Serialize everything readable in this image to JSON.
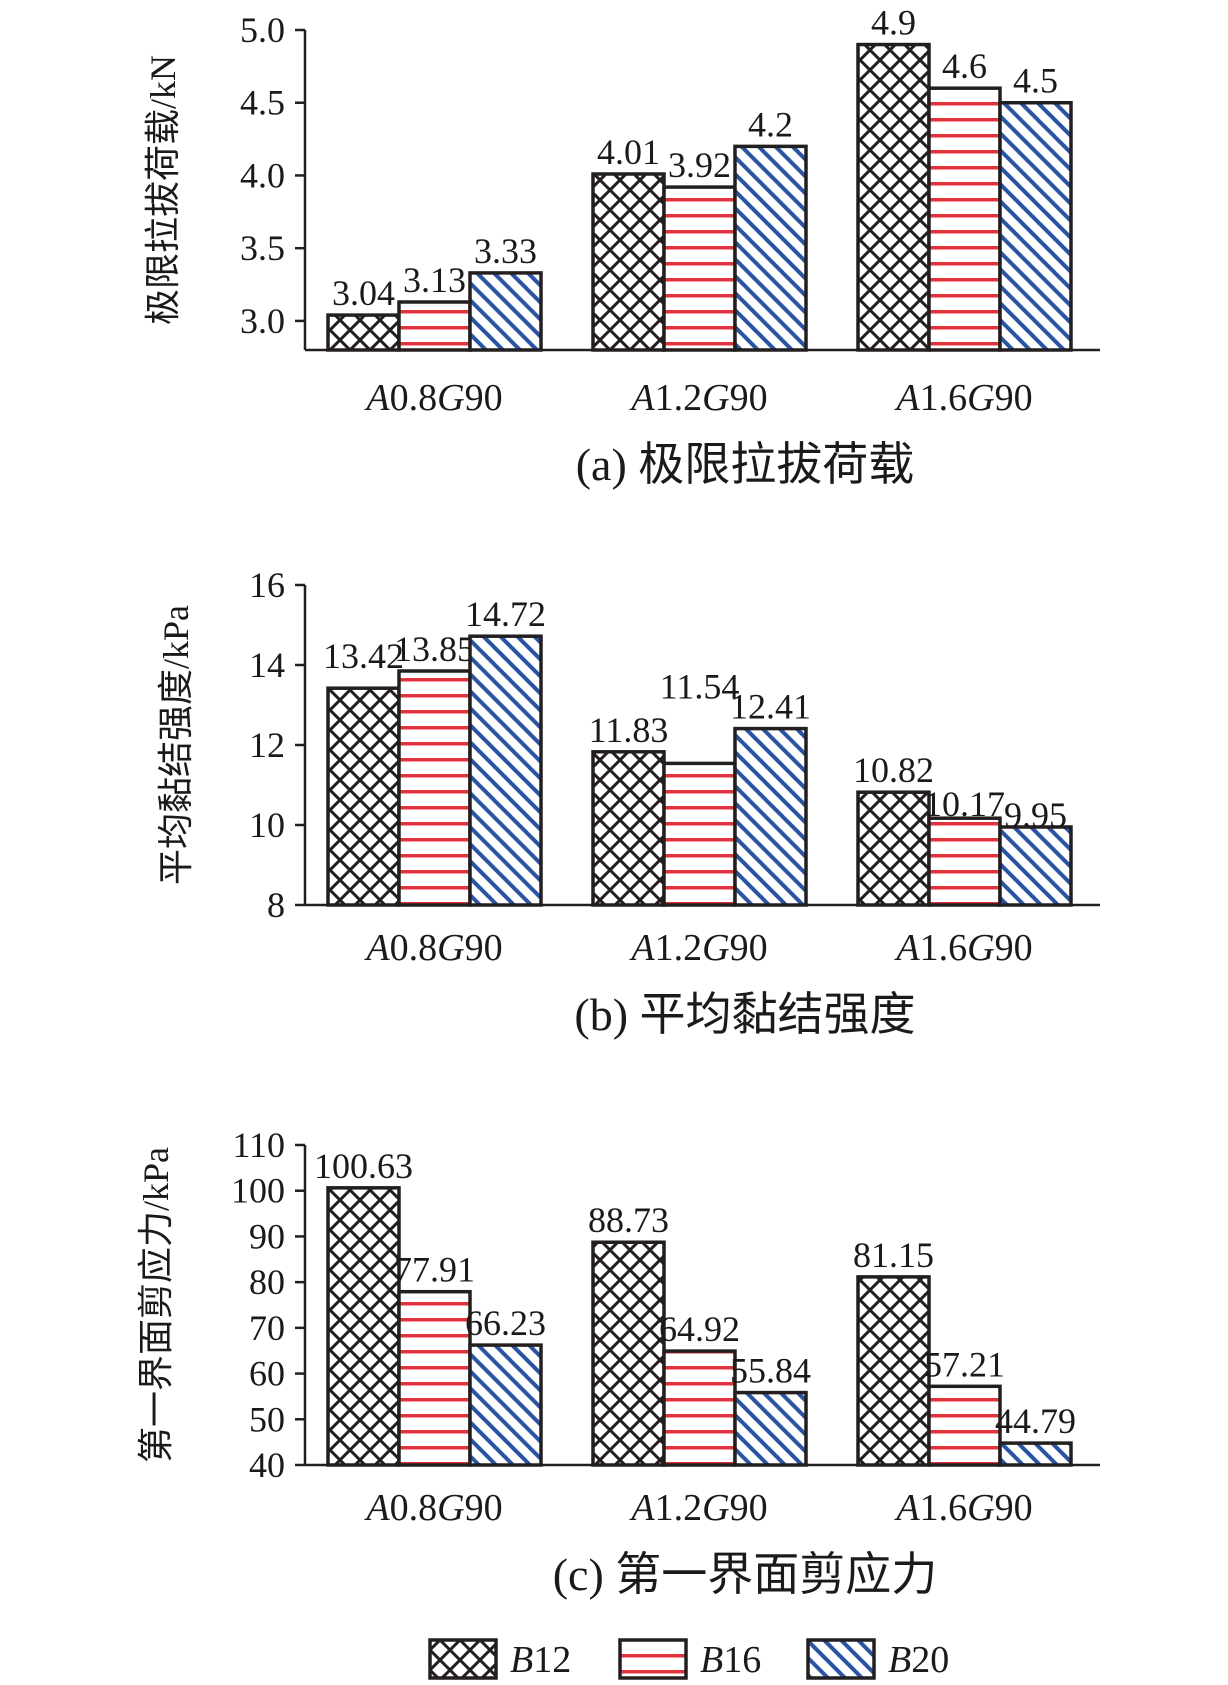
{
  "legend": {
    "items": [
      {
        "label_italic": "B",
        "label_rest": "12",
        "pattern": "crosshatch",
        "color": "#231f20"
      },
      {
        "label_italic": "B",
        "label_rest": "16",
        "pattern": "horizontal",
        "color": "#e0333c"
      },
      {
        "label_italic": "B",
        "label_rest": "20",
        "pattern": "diagonal",
        "color": "#2b55a3"
      }
    ]
  },
  "colors": {
    "axis": "#231f20",
    "crosshatch": "#231f20",
    "horizontal": "#e0333c",
    "diagonal": "#2b55a3"
  },
  "chart_data": [
    {
      "type": "bar",
      "caption": "(a) 极限拉拔荷载",
      "ylabel": "极限拉拔荷载/kN",
      "ylim": [
        2.8,
        5.0
      ],
      "yticks": [
        3.0,
        3.5,
        4.0,
        4.5,
        5.0
      ],
      "ytick_labels": [
        "3.0",
        "3.5",
        "4.0",
        "4.5",
        "5.0"
      ],
      "categories": [
        {
          "parts": [
            {
              "t": "A",
              "i": true
            },
            {
              "t": "0.8",
              "i": false
            },
            {
              "t": "G",
              "i": true
            },
            {
              "t": "90",
              "i": false
            }
          ]
        },
        {
          "parts": [
            {
              "t": "A",
              "i": true
            },
            {
              "t": "1.2",
              "i": false
            },
            {
              "t": "G",
              "i": true
            },
            {
              "t": "90",
              "i": false
            }
          ]
        },
        {
          "parts": [
            {
              "t": "A",
              "i": true
            },
            {
              "t": "1.6",
              "i": false
            },
            {
              "t": "G",
              "i": true
            },
            {
              "t": "90",
              "i": false
            }
          ]
        }
      ],
      "series": [
        {
          "name": "B12",
          "values": [
            3.04,
            4.01,
            4.9
          ],
          "labels": [
            "3.04",
            "4.01",
            "4.9"
          ]
        },
        {
          "name": "B16",
          "values": [
            3.13,
            3.92,
            4.6
          ],
          "labels": [
            "3.13",
            "3.92",
            "4.6"
          ]
        },
        {
          "name": "B20",
          "values": [
            3.33,
            4.2,
            4.5
          ],
          "labels": [
            "3.33",
            "4.2",
            "4.5"
          ]
        }
      ]
    },
    {
      "type": "bar",
      "caption": "(b) 平均黏结强度",
      "ylabel": "平均黏结强度/kPa",
      "ylim": [
        8,
        16
      ],
      "yticks": [
        8,
        10,
        12,
        14,
        16
      ],
      "ytick_labels": [
        "8",
        "10",
        "12",
        "14",
        "16"
      ],
      "categories": [
        {
          "parts": [
            {
              "t": "A",
              "i": true
            },
            {
              "t": "0.8",
              "i": false
            },
            {
              "t": "G",
              "i": true
            },
            {
              "t": "90",
              "i": false
            }
          ]
        },
        {
          "parts": [
            {
              "t": "A",
              "i": true
            },
            {
              "t": "1.2",
              "i": false
            },
            {
              "t": "G",
              "i": true
            },
            {
              "t": "90",
              "i": false
            }
          ]
        },
        {
          "parts": [
            {
              "t": "A",
              "i": true
            },
            {
              "t": "1.6",
              "i": false
            },
            {
              "t": "G",
              "i": true
            },
            {
              "t": "90",
              "i": false
            }
          ]
        }
      ],
      "series": [
        {
          "name": "B12",
          "values": [
            13.42,
            11.83,
            10.82
          ],
          "labels": [
            "13.42",
            "11.83",
            "10.82"
          ]
        },
        {
          "name": "B16",
          "values": [
            13.85,
            11.54,
            10.17
          ],
          "labels": [
            "13.85",
            "11.54",
            "10.17"
          ]
        },
        {
          "name": "B20",
          "values": [
            14.72,
            12.41,
            9.95
          ],
          "labels": [
            "14.72",
            "12.41",
            "9.95"
          ]
        }
      ]
    },
    {
      "type": "bar",
      "caption": "(c) 第一界面剪应力",
      "ylabel": "第一界面剪应力/kPa",
      "ylim": [
        40,
        110
      ],
      "yticks": [
        40,
        50,
        60,
        70,
        80,
        90,
        100,
        110
      ],
      "ytick_labels": [
        "40",
        "50",
        "60",
        "70",
        "80",
        "90",
        "100",
        "110"
      ],
      "categories": [
        {
          "parts": [
            {
              "t": "A",
              "i": true
            },
            {
              "t": "0.8",
              "i": false
            },
            {
              "t": "G",
              "i": true
            },
            {
              "t": "90",
              "i": false
            }
          ]
        },
        {
          "parts": [
            {
              "t": "A",
              "i": true
            },
            {
              "t": "1.2",
              "i": false
            },
            {
              "t": "G",
              "i": true
            },
            {
              "t": "90",
              "i": false
            }
          ]
        },
        {
          "parts": [
            {
              "t": "A",
              "i": true
            },
            {
              "t": "1.6",
              "i": false
            },
            {
              "t": "G",
              "i": true
            },
            {
              "t": "90",
              "i": false
            }
          ]
        }
      ],
      "series": [
        {
          "name": "B12",
          "values": [
            100.63,
            88.73,
            81.15
          ],
          "labels": [
            "100.63",
            "88.73",
            "81.15"
          ]
        },
        {
          "name": "B16",
          "values": [
            77.91,
            64.92,
            57.21
          ],
          "labels": [
            "77.91",
            "64.92",
            "57.21"
          ]
        },
        {
          "name": "B20",
          "values": [
            66.23,
            55.84,
            44.79
          ],
          "labels": [
            "66.23",
            "55.84",
            "44.79"
          ]
        }
      ]
    }
  ]
}
